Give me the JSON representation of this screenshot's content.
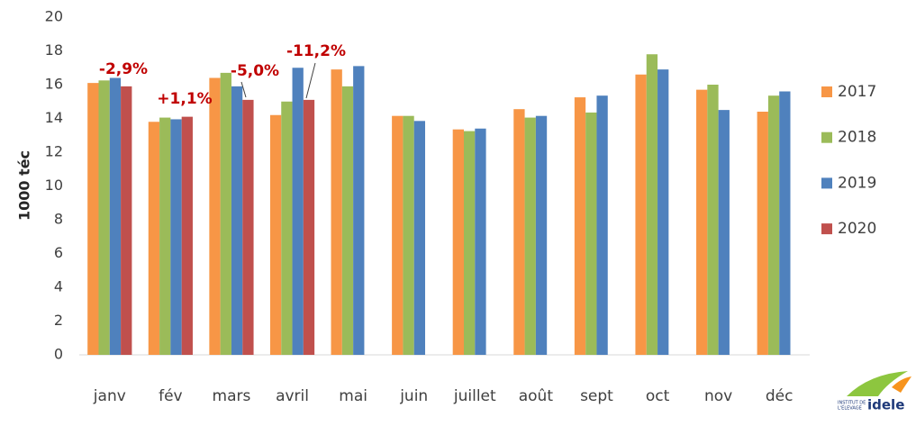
{
  "chart_data": {
    "type": "bar",
    "y_label": "1000 téc",
    "categories": [
      "janv",
      "fév",
      "mars",
      "avril",
      "mai",
      "juin",
      "juillet",
      "août",
      "sept",
      "oct",
      "nov",
      "déc"
    ],
    "series": [
      {
        "name": "2017",
        "color": "#f79646",
        "values": [
          16.1,
          13.8,
          16.4,
          14.2,
          16.9,
          14.15,
          13.35,
          14.55,
          15.25,
          16.6,
          15.7,
          14.4
        ]
      },
      {
        "name": "2018",
        "color": "#9bbb59",
        "values": [
          16.25,
          14.05,
          16.7,
          15.0,
          15.9,
          14.15,
          13.25,
          14.05,
          14.35,
          17.8,
          16.0,
          15.35
        ]
      },
      {
        "name": "2019",
        "color": "#4f81bd",
        "values": [
          16.4,
          13.95,
          15.9,
          17.0,
          17.1,
          13.85,
          13.4,
          14.15,
          15.35,
          16.9,
          14.5,
          15.6
        ]
      },
      {
        "name": "2020",
        "color": "#c0504d",
        "values": [
          15.9,
          14.1,
          15.1,
          15.1,
          null,
          null,
          null,
          null,
          null,
          null,
          null,
          null
        ]
      }
    ],
    "annotations": [
      "-2,9%",
      "+1,1%",
      "-5,0%",
      "-11,2%"
    ],
    "ylim": [
      0,
      20
    ],
    "yticks": [
      0,
      2,
      4,
      6,
      8,
      10,
      12,
      14,
      16,
      18,
      20
    ],
    "grid": false,
    "legend": "right",
    "logo": {
      "line1": "INSTITUT DE",
      "line2": "L'ELEVAGE",
      "brand": "idele"
    }
  }
}
